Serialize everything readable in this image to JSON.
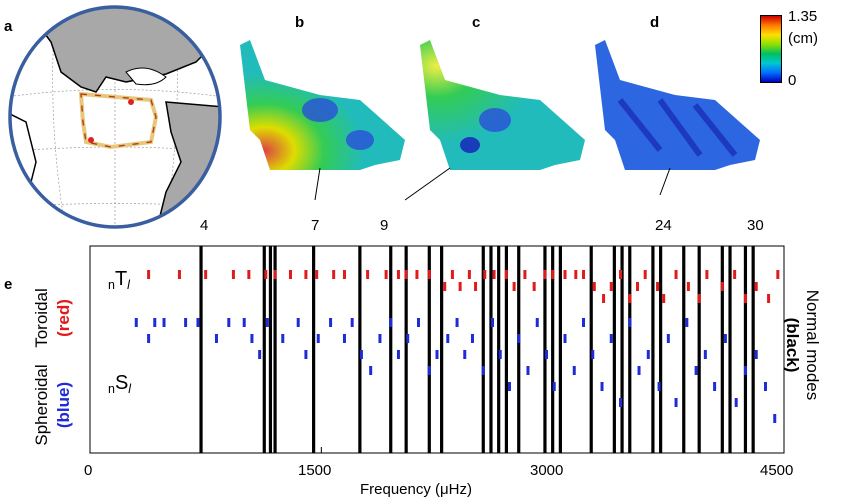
{
  "panel_labels": [
    "a",
    "b",
    "c",
    "d",
    "e"
  ],
  "colorbar": {
    "max": "1.35",
    "unit": "(cm)",
    "min": "0"
  },
  "mode_numbers": [
    "4",
    "7",
    "9",
    "24",
    "30"
  ],
  "side_labels": {
    "left_top": "Toroidal",
    "left_top_color": "(red)",
    "left_bottom": "Spheroidal",
    "left_bottom_color": "(blue)",
    "right": "Normal modes",
    "right_color": "(black)"
  },
  "row_labels": {
    "toroidal_prefix": "n",
    "toroidal_letter": "T",
    "toroidal_suffix": "l",
    "spheroidal_prefix": "n",
    "spheroidal_letter": "S",
    "spheroidal_suffix": "l"
  },
  "colors": {
    "toroidal": "#e11b1b",
    "spheroidal": "#1f2bd6",
    "normal": "#000000",
    "earth_border": "#3a5fa0"
  },
  "chart_data": {
    "type": "scatter",
    "xlabel": "Frequency (μHz)",
    "xlim": [
      0,
      4500
    ],
    "xticks": [
      0,
      1500,
      3000,
      4500
    ],
    "series": [
      {
        "name": "Normal modes",
        "x": [
          720,
          1130,
          1170,
          1200,
          1450,
          1750,
          1950,
          2050,
          2200,
          2280,
          2550,
          2600,
          2650,
          2700,
          2780,
          2950,
          3000,
          3050,
          3250,
          3400,
          3450,
          3500,
          3650,
          3700,
          3850,
          3950,
          4100,
          4150,
          4250,
          4300
        ]
      },
      {
        "name": "Toroidal",
        "x": [
          380,
          580,
          750,
          930,
          1030,
          1140,
          1200,
          1300,
          1400,
          1470,
          1580,
          1650,
          1800,
          1920,
          2000,
          2050,
          2120,
          2200,
          2300,
          2350,
          2400,
          2460,
          2500,
          2560,
          2620,
          2700,
          2750,
          2820,
          2880,
          2950,
          3000,
          3080,
          3150,
          3200,
          3270,
          3330,
          3380,
          3440,
          3500,
          3550,
          3600,
          3680,
          3720,
          3800,
          3880,
          3950,
          4000,
          4100,
          4180,
          4250,
          4320,
          4400,
          4460
        ],
        "y": [
          1,
          1,
          1,
          1,
          1,
          1,
          1,
          1,
          1,
          1,
          1,
          1,
          1,
          1,
          1,
          1,
          1,
          1,
          2,
          1,
          2,
          1,
          2,
          1,
          1,
          1,
          2,
          1,
          2,
          1,
          1,
          1,
          1,
          1,
          2,
          3,
          2,
          1,
          3,
          2,
          1,
          2,
          3,
          1,
          2,
          3,
          1,
          2,
          1,
          3,
          2,
          3,
          1
        ]
      },
      {
        "name": "Spheroidal",
        "x": [
          300,
          380,
          420,
          480,
          620,
          700,
          820,
          900,
          1000,
          1050,
          1100,
          1150,
          1250,
          1350,
          1400,
          1480,
          1560,
          1650,
          1700,
          1760,
          1820,
          1880,
          1950,
          2000,
          2060,
          2130,
          2200,
          2250,
          2320,
          2380,
          2430,
          2480,
          2550,
          2610,
          2660,
          2720,
          2780,
          2840,
          2900,
          2960,
          3010,
          3080,
          3140,
          3200,
          3260,
          3320,
          3380,
          3440,
          3500,
          3560,
          3620,
          3690,
          3750,
          3800,
          3870,
          3930,
          3990,
          4050,
          4120,
          4190,
          4250,
          4320,
          4380,
          4440
        ],
        "y": [
          1,
          2,
          1,
          1,
          1,
          1,
          2,
          1,
          1,
          2,
          3,
          1,
          2,
          1,
          3,
          2,
          1,
          2,
          1,
          3,
          4,
          2,
          1,
          3,
          2,
          1,
          4,
          3,
          2,
          1,
          3,
          2,
          4,
          1,
          3,
          5,
          2,
          4,
          1,
          3,
          5,
          2,
          4,
          1,
          3,
          5,
          2,
          6,
          1,
          4,
          3,
          5,
          2,
          6,
          1,
          4,
          3,
          5,
          2,
          6,
          4,
          3,
          5,
          7
        ]
      }
    ]
  }
}
